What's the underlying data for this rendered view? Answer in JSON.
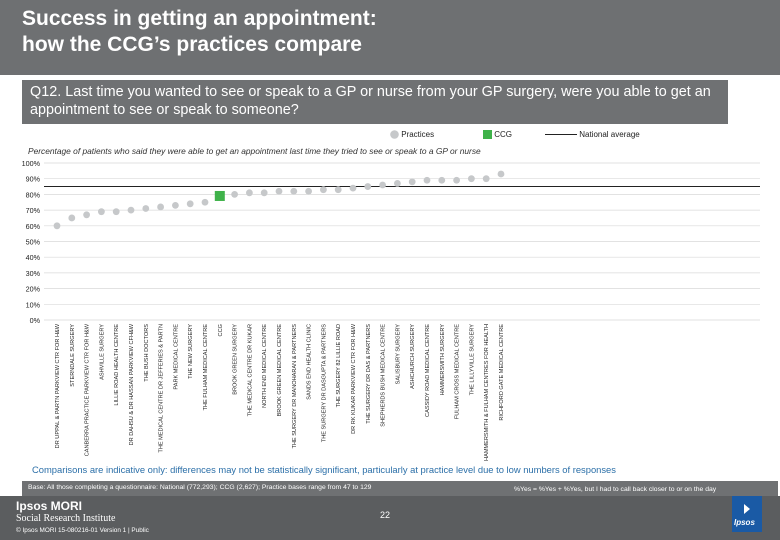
{
  "slide": {
    "title_line1": "Success in getting an appointment:",
    "title_line2": "how the CCG’s practices compare",
    "question": "Q12. Last time you wanted to see or speak to a GP or nurse from your GP surgery, were you able to get an appointment to see or speak to someone?",
    "legend": {
      "practices": "Practices",
      "ccg": "CCG",
      "national": "National average"
    },
    "subtitle": "Percentage of patients who said they were able to get an appointment last time they tried to see or speak to a GP or nurse",
    "comparison_note": "Comparisons are indicative only: differences may not be statistically significant, particularly at practice level due to low numbers of responses",
    "base_note": "Base: All those completing a questionnaire: National (772,293); CCG (2,627); Practice bases range from 47 to 129",
    "yes_definition": "%Yes = %Yes + %Yes, but I had to call back closer to or on the day",
    "page_number": "22",
    "footer": {
      "logo_line1": "Ipsos MORI",
      "logo_line2": "Social Research Institute",
      "copyright": "© Ipsos MORI     15-080216-01 Version 1 | Public",
      "corner_logo": "Ipsos"
    }
  },
  "colors": {
    "practice": "#c6c8ca",
    "ccg": "#3fb24a",
    "national": "#222222",
    "header": "#6e7072",
    "note": "#2b6fa8"
  },
  "chart_data": {
    "type": "bar",
    "ylim": [
      0,
      100
    ],
    "yticks": [
      "0%",
      "10%",
      "20%",
      "30%",
      "40%",
      "50%",
      "60%",
      "70%",
      "80%",
      "90%",
      "100%"
    ],
    "national_average": 85,
    "categories": [
      "DR UPPAL & PARTN PARKVIEW CTR FOR H&W",
      "STERNDALE SURGERY",
      "CANBERRA PRACTICE PARKVIEW CTR FOR H&W",
      "ASHVILLE SURGERY",
      "LILLIE ROAD HEALTH CENTRE",
      "DR DAHSU & DR HASSAN PARKVIEW CFH&W",
      "THE BUSH DOCTORS",
      "THE MEDICAL CENTRE DR JEFFERIES & PARTN",
      "PARK MEDICAL CENTRE",
      "THE NEW SURGERY",
      "THE FULHAM MEDICAL CENTRE",
      "CCG",
      "BROOK GREEN SURGERY",
      "THE MEDICAL CENTRE DR KUKAR",
      "NORTH END MEDICAL CENTRE",
      "BROOK GREEN MEDICAL CENTRE",
      "THE SURGERY DR MANOHARAN & PARTNERS",
      "SANDS END HEALTH CLINIC",
      "THE SURGERY DR DASGUPTA & PARTNERS",
      "THE SURGERY 82 LILLIE ROAD",
      "DR RK KUKAR PARKVIEW CTR FOR H&W",
      "THE SURGERY DR DAS & PARTNERS",
      "SHEPHERDS BUSH MEDICAL CENTRE",
      "SALISBURY SURGERY",
      "ASHCHURCH SURGERY",
      "CASSIDY ROAD MEDICAL CENTRE",
      "HAMMERSMITH SURGERY",
      "FULHAM CROSS MEDICAL CENTRE",
      "THE LILLYVILLE SURGERY",
      "HAMMERSMITH & FULHAM CENTRES FOR HEALTH",
      "RICHFORD GATE MEDICAL CENTRE"
    ],
    "values": [
      60,
      65,
      67,
      69,
      69,
      70,
      71,
      72,
      73,
      74,
      75,
      79,
      80,
      81,
      81,
      82,
      82,
      82,
      83,
      83,
      84,
      85,
      86,
      87,
      88,
      89,
      89,
      89,
      90,
      90,
      93
    ],
    "highlight": "CCG"
  }
}
